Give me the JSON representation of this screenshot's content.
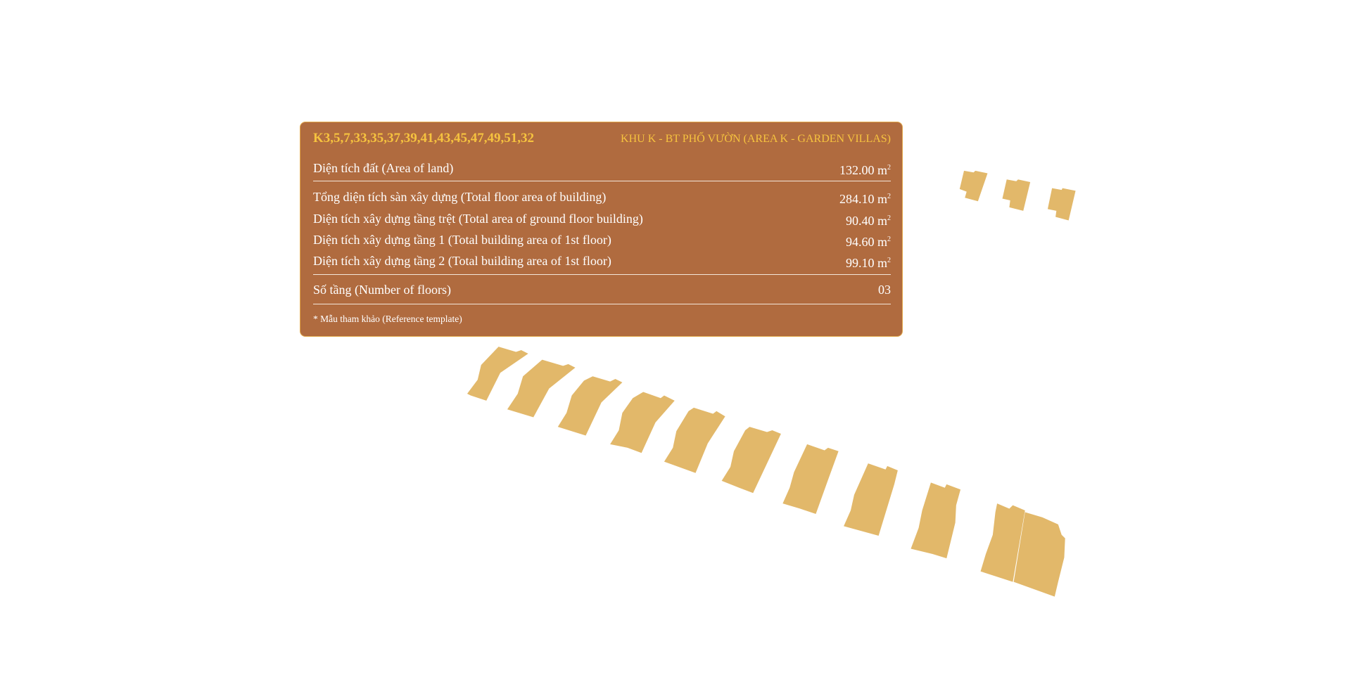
{
  "colors": {
    "panel_bg": "#b06b3f",
    "panel_border": "#e2a84a",
    "title": "#f6c33f",
    "building": "#e2b86a"
  },
  "panel": {
    "code": "K3,5,7,33,35,37,39,41,43,45,47,49,51,32",
    "zone": "KHU K - BT PHỐ VƯỜN (AREA K - GARDEN VILLAS)",
    "unit": "m",
    "unit_sup": "2",
    "rows": [
      {
        "label": "Diện tích đất (Area of land)",
        "value": "132.00"
      },
      {
        "label": "Tổng diện tích sàn xây dựng (Total floor area of building)",
        "value": "284.10"
      },
      {
        "label": "Diện tích xây dựng tầng trệt (Total area of ground floor building)",
        "value": "90.40"
      },
      {
        "label": "Diện tích xây dựng tầng 1 (Total building area of 1st floor)",
        "value": "94.60"
      },
      {
        "label": "Diện tích xây dựng tầng 2 (Total building area of 1st floor)",
        "value": "99.10"
      }
    ],
    "floors": {
      "label": "Số tầng (Number of floors)",
      "value": "03"
    },
    "note": "* Mẫu tham khảo (Reference template)"
  }
}
